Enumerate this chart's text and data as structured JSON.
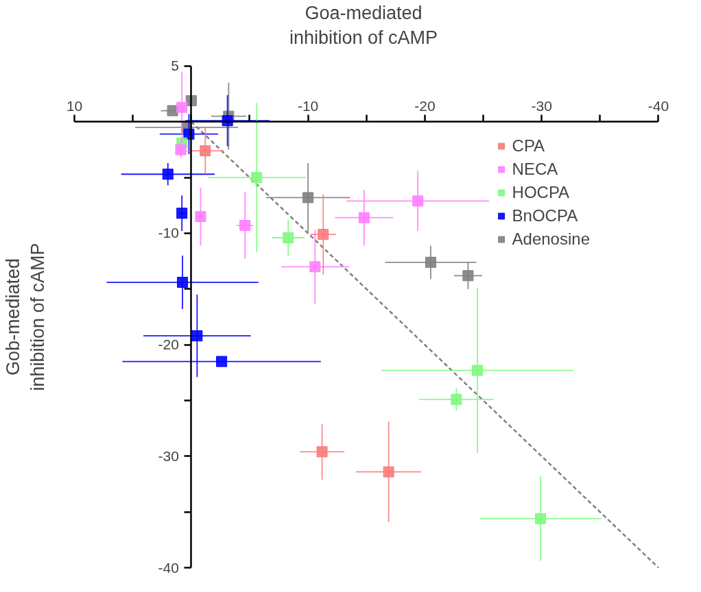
{
  "chart_data": {
    "type": "scatter",
    "xlabel": "Goa-mediated\ninhibition of cAMP",
    "ylabel": "Gob-mediated\ninhibition of cAMP",
    "xlim": [
      10,
      -40
    ],
    "ylim": [
      -40,
      5
    ],
    "xticks": [
      10,
      {
        "value": 5,
        "label": null
      },
      {
        "value": 0,
        "label": null
      },
      {
        "value": -5,
        "label": null
      },
      -10,
      {
        "value": -15,
        "label": null
      },
      -20,
      {
        "value": -25,
        "label": null
      },
      -30,
      {
        "value": -35,
        "label": null
      },
      -40
    ],
    "yticks": [
      5,
      {
        "value": 0,
        "label": null
      },
      {
        "value": -5,
        "label": null
      },
      -10,
      {
        "value": -15,
        "label": null
      },
      -20,
      {
        "value": -25,
        "label": null
      },
      -30,
      {
        "value": -35,
        "label": null
      },
      -40
    ],
    "grid": false,
    "legend": "top right",
    "marker": "square",
    "series": [
      {
        "name": "CPA",
        "color": "#f87c7c",
        "x": [
          -1.2,
          -11.3,
          -11.2,
          -16.9
        ],
        "values": [
          -2.6,
          -10.1,
          -29.6,
          -31.4
        ],
        "xerrors": [
          1.6,
          1.1,
          1.9,
          2.8
        ],
        "errors": [
          2.1,
          3.6,
          2.5,
          4.5
        ]
      },
      {
        "name": "NECA",
        "color": "#ff80ff",
        "x": [
          0.8,
          0.9,
          -0.8,
          -4.6,
          -14.8,
          -19.4,
          -10.6
        ],
        "values": [
          1.3,
          -2.5,
          -8.5,
          -9.3,
          -8.6,
          -7.1,
          -13.0
        ],
        "xerrors": [
          0.3,
          0.3,
          0.3,
          0.7,
          2.5,
          6.1,
          2.9
        ],
        "errors": [
          3.2,
          0.7,
          2.6,
          3.0,
          2.5,
          2.7,
          3.3
        ]
      },
      {
        "name": "HOCPA",
        "color": "#80f880",
        "x": [
          0.8,
          -5.6,
          -8.3,
          -24.5,
          -22.7,
          -29.9
        ],
        "values": [
          -1.9,
          -5.0,
          -10.4,
          -22.3,
          -24.9,
          -35.6
        ],
        "xerrors": [
          0.3,
          4.2,
          1.4,
          8.2,
          3.2,
          5.2
        ],
        "errors": [
          null,
          6.7,
          1.6,
          7.4,
          1.0,
          3.8
        ]
      },
      {
        "name": "BnOCPA",
        "color": "#0000ff",
        "x": [
          -3.1,
          0.2,
          2.0,
          0.8,
          0.75,
          -0.5,
          -2.6
        ],
        "values": [
          0.1,
          -1.1,
          -4.7,
          -8.2,
          -14.4,
          -19.2,
          -21.5
        ],
        "xerrors": [
          3.6,
          2.5,
          4.0,
          0.3,
          6.5,
          4.6,
          8.5
        ],
        "errors": [
          2.3,
          1.8,
          1.0,
          1.6,
          2.4,
          3.7,
          null
        ]
      },
      {
        "name": "Adenosine",
        "color": "#808080",
        "x": [
          1.6,
          0,
          -3.2,
          0.4,
          -10.0,
          -20.5,
          -23.7
        ],
        "values": [
          1.0,
          1.9,
          0.5,
          -0.5,
          -6.8,
          -12.6,
          -13.8
        ],
        "xerrors": [
          1.0,
          null,
          1.5,
          4.4,
          3.6,
          3.9,
          1.2
        ],
        "errors": [
          null,
          null,
          3.0,
          null,
          3.1,
          1.5,
          1.2
        ]
      },
      {
        "type": "line",
        "color": "#808080",
        "line_style": "dashed",
        "marker": "none",
        "x": [
          0,
          -40
        ],
        "values": [
          0,
          -40
        ]
      }
    ]
  }
}
